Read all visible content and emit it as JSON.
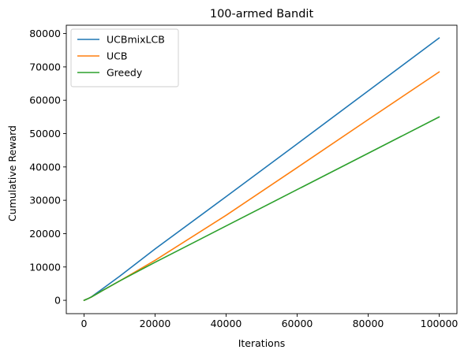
{
  "chart_data": {
    "type": "line",
    "title": "100-armed Bandit",
    "xlabel": "Iterations",
    "ylabel": "Cumulative Reward",
    "xlim": [
      -5000,
      105000
    ],
    "ylim": [
      -4000,
      82500
    ],
    "xticks": [
      0,
      20000,
      40000,
      60000,
      80000,
      100000
    ],
    "yticks": [
      0,
      10000,
      20000,
      30000,
      40000,
      50000,
      60000,
      70000,
      80000
    ],
    "grid": false,
    "legend_position": "top-left",
    "series": [
      {
        "name": "UCBmixLCB",
        "color": "#1f77b4",
        "x": [
          0,
          1000,
          2000,
          5000,
          10000,
          20000,
          40000,
          60000,
          80000,
          100000
        ],
        "y": [
          0,
          450,
          1000,
          3300,
          7200,
          15400,
          31100,
          46900,
          62800,
          78700
        ]
      },
      {
        "name": "UCB",
        "color": "#ff7f0e",
        "x": [
          0,
          1000,
          2000,
          5000,
          10000,
          20000,
          40000,
          60000,
          80000,
          100000
        ],
        "y": [
          0,
          450,
          950,
          2800,
          5800,
          12000,
          25500,
          39800,
          54200,
          68500
        ]
      },
      {
        "name": "Greedy",
        "color": "#2ca02c",
        "x": [
          0,
          1000,
          2000,
          5000,
          10000,
          20000,
          40000,
          60000,
          80000,
          100000
        ],
        "y": [
          0,
          450,
          950,
          2800,
          5800,
          11400,
          22300,
          33200,
          44100,
          55000
        ]
      }
    ]
  }
}
